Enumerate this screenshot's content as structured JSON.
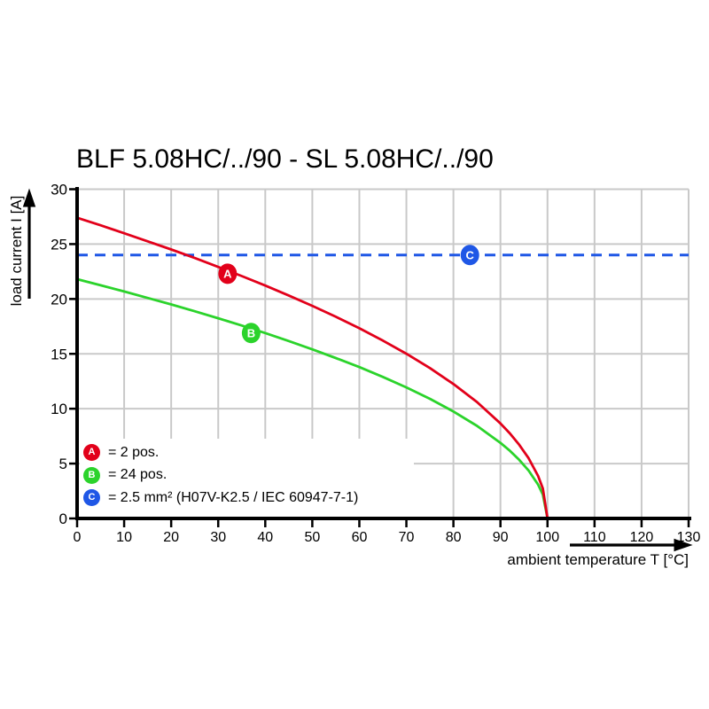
{
  "title": "BLF 5.08HC/../90 - SL 5.08HC/../90",
  "chart_data": {
    "type": "line",
    "title": "BLF 5.08HC/../90 - SL 5.08HC/../90",
    "xlabel": "ambient temperature T [°C]",
    "ylabel": "load current I [A]",
    "xlim": [
      0,
      130
    ],
    "ylim": [
      0,
      30
    ],
    "x_ticks": [
      0,
      10,
      20,
      30,
      40,
      50,
      60,
      70,
      80,
      90,
      100,
      110,
      120,
      130
    ],
    "y_ticks": [
      0,
      5,
      10,
      15,
      20,
      25,
      30
    ],
    "grid": true,
    "grid_color": "#c9c9c9",
    "axis_color": "#000000",
    "legend_position": "bottom-left-inside",
    "series": [
      {
        "id": "A",
        "name": "2 pos.",
        "color": "#e2001a",
        "style": "solid",
        "points": [
          [
            0,
            27.4
          ],
          [
            5,
            26.71
          ],
          [
            10,
            25.99
          ],
          [
            15,
            25.25
          ],
          [
            20,
            24.51
          ],
          [
            25,
            23.73
          ],
          [
            30,
            22.92
          ],
          [
            35,
            22.09
          ],
          [
            40,
            21.22
          ],
          [
            45,
            20.32
          ],
          [
            50,
            19.37
          ],
          [
            55,
            18.38
          ],
          [
            60,
            17.33
          ],
          [
            65,
            16.21
          ],
          [
            70,
            15.01
          ],
          [
            75,
            13.7
          ],
          [
            80,
            12.25
          ],
          [
            85,
            10.61
          ],
          [
            90,
            8.66
          ],
          [
            92,
            7.75
          ],
          [
            94,
            6.71
          ],
          [
            96,
            5.48
          ],
          [
            98,
            3.87
          ],
          [
            99,
            2.74
          ],
          [
            100,
            0
          ]
        ]
      },
      {
        "id": "B",
        "name": "24 pos.",
        "color": "#2bd32b",
        "style": "solid",
        "points": [
          [
            0,
            21.8
          ],
          [
            5,
            21.25
          ],
          [
            10,
            20.68
          ],
          [
            15,
            20.09
          ],
          [
            20,
            19.5
          ],
          [
            25,
            18.88
          ],
          [
            30,
            18.24
          ],
          [
            35,
            17.58
          ],
          [
            40,
            16.89
          ],
          [
            45,
            16.17
          ],
          [
            50,
            15.41
          ],
          [
            55,
            14.62
          ],
          [
            60,
            13.79
          ],
          [
            65,
            12.9
          ],
          [
            70,
            11.94
          ],
          [
            75,
            10.9
          ],
          [
            80,
            9.75
          ],
          [
            85,
            8.44
          ],
          [
            90,
            6.89
          ],
          [
            92,
            6.17
          ],
          [
            94,
            5.34
          ],
          [
            96,
            4.36
          ],
          [
            98,
            3.08
          ],
          [
            99,
            2.18
          ],
          [
            100,
            0
          ]
        ]
      },
      {
        "id": "C",
        "name": "2.5 mm² (H07V-K2.5 / IEC 60947-7-1)",
        "color": "#1f57e6",
        "style": "dashed",
        "points": [
          [
            0,
            24
          ],
          [
            130,
            24
          ]
        ]
      }
    ],
    "markers": [
      {
        "label": "A",
        "x": 32,
        "y": 22.3,
        "color": "#e2001a"
      },
      {
        "label": "B",
        "x": 37,
        "y": 16.9,
        "color": "#2bd32b"
      },
      {
        "label": "C",
        "x": 83.5,
        "y": 24,
        "color": "#1f57e6"
      }
    ]
  },
  "legend": {
    "items": [
      {
        "badge": "A",
        "label": "= 2 pos."
      },
      {
        "badge": "B",
        "label": "= 24 pos."
      },
      {
        "badge": "C",
        "label": "= 2.5 mm² (H07V-K2.5 / IEC 60947-7-1)"
      }
    ]
  }
}
